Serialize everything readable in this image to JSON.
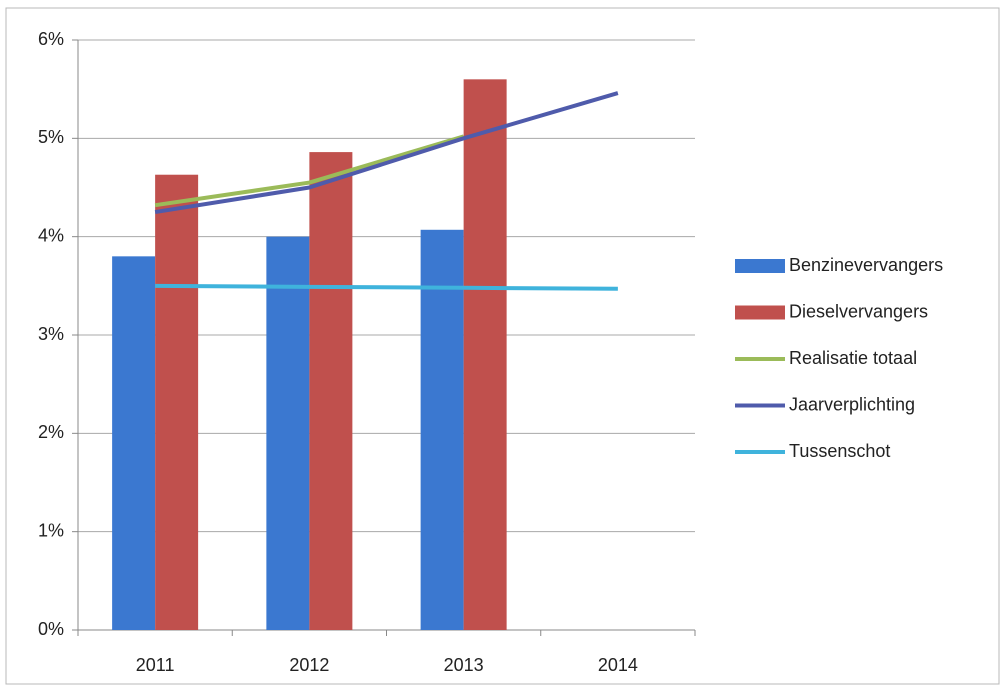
{
  "chart_data": {
    "type": "bar",
    "categories": [
      "2011",
      "2012",
      "2013",
      "2014"
    ],
    "series": [
      {
        "name": "Benzinevervangers",
        "type": "bar",
        "color": "#3b78d0",
        "values": [
          3.8,
          4.0,
          4.07,
          null
        ]
      },
      {
        "name": "Dieselvervangers",
        "type": "bar",
        "color": "#c0504d",
        "values": [
          4.63,
          4.86,
          5.6,
          null
        ]
      },
      {
        "name": "Realisatie totaal",
        "type": "line",
        "color": "#9bbb59",
        "values": [
          4.32,
          4.55,
          5.02,
          null
        ]
      },
      {
        "name": "Jaarverplichting",
        "type": "line",
        "color": "#4f5bab",
        "values": [
          4.25,
          4.5,
          5.0,
          5.46
        ]
      },
      {
        "name": "Tussenschot",
        "type": "line",
        "color": "#3fb3dc",
        "values": [
          3.5,
          3.49,
          3.48,
          3.47
        ]
      }
    ],
    "ylim": [
      0,
      6
    ],
    "yticks": [
      {
        "value": 0,
        "label": "0%"
      },
      {
        "value": 1,
        "label": "1%"
      },
      {
        "value": 2,
        "label": "2%"
      },
      {
        "value": 3,
        "label": "3%"
      },
      {
        "value": 4,
        "label": "4%"
      },
      {
        "value": 5,
        "label": "5%"
      },
      {
        "value": 6,
        "label": "6%"
      }
    ],
    "grid": true,
    "legend": "right"
  }
}
